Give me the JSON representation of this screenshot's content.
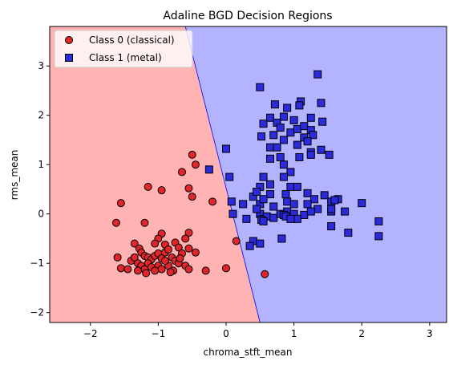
{
  "chart_data": {
    "type": "scatter",
    "title": "Adaline BGD Decision Regions",
    "xlabel": "chroma_stft_mean",
    "ylabel": "rms_mean",
    "xlim": [
      -2.6,
      3.25
    ],
    "ylim": [
      -2.2,
      3.8
    ],
    "x_ticks": [
      -2,
      -1,
      0,
      1,
      2,
      3
    ],
    "y_ticks": [
      -2,
      -1,
      0,
      1,
      2,
      3
    ],
    "grid": false,
    "legend_position": "top-left",
    "regions": {
      "boundary_line": [
        [
          -0.6,
          3.8
        ],
        [
          0.5,
          -2.2
        ]
      ],
      "class_0_color": "#ffb3b3",
      "class_1_color": "#b3b3ff",
      "boundary_color": "#0000ff"
    },
    "series": [
      {
        "name": "Class 0 (classical)",
        "marker": "circle",
        "color": "#e0262b",
        "edge_color": "#000000",
        "points": [
          [
            -0.5,
            1.2
          ],
          [
            -0.45,
            1.0
          ],
          [
            -0.65,
            0.85
          ],
          [
            -0.55,
            0.52
          ],
          [
            -0.5,
            0.35
          ],
          [
            -1.15,
            0.55
          ],
          [
            -0.95,
            0.48
          ],
          [
            -1.55,
            0.22
          ],
          [
            -0.2,
            0.25
          ],
          [
            -1.62,
            -0.18
          ],
          [
            -1.2,
            -0.18
          ],
          [
            -0.95,
            -0.4
          ],
          [
            -0.55,
            -0.38
          ],
          [
            -0.6,
            -0.5
          ],
          [
            -1.0,
            -0.5
          ],
          [
            -1.35,
            -0.6
          ],
          [
            -1.05,
            -0.6
          ],
          [
            -0.75,
            -0.58
          ],
          [
            -0.9,
            -0.62
          ],
          [
            0.15,
            -0.55
          ],
          [
            -1.6,
            -0.88
          ],
          [
            -1.4,
            -0.95
          ],
          [
            -1.28,
            -0.7
          ],
          [
            -1.25,
            -0.78
          ],
          [
            -1.2,
            -0.85
          ],
          [
            -1.15,
            -0.88
          ],
          [
            -1.1,
            -0.92
          ],
          [
            -1.05,
            -0.85
          ],
          [
            -1.0,
            -0.8
          ],
          [
            -0.95,
            -0.9
          ],
          [
            -0.9,
            -0.78
          ],
          [
            -0.85,
            -0.72
          ],
          [
            -0.8,
            -0.88
          ],
          [
            -0.75,
            -0.95
          ],
          [
            -0.7,
            -0.68
          ],
          [
            -0.65,
            -0.8
          ],
          [
            -0.55,
            -0.7
          ],
          [
            -0.45,
            -0.78
          ],
          [
            -1.3,
            -1.0
          ],
          [
            -1.25,
            -1.05
          ],
          [
            -1.2,
            -1.12
          ],
          [
            -1.15,
            -1.0
          ],
          [
            -1.1,
            -1.08
          ],
          [
            -1.0,
            -1.05
          ],
          [
            -0.95,
            -1.12
          ],
          [
            -0.85,
            -1.05
          ],
          [
            -0.78,
            -1.15
          ],
          [
            -0.7,
            -1.0
          ],
          [
            -0.6,
            -1.05
          ],
          [
            -1.55,
            -1.1
          ],
          [
            -1.45,
            -1.12
          ],
          [
            -1.3,
            -1.15
          ],
          [
            -1.18,
            -1.2
          ],
          [
            -1.05,
            -1.15
          ],
          [
            -0.82,
            -1.18
          ],
          [
            -0.55,
            -1.12
          ],
          [
            -0.3,
            -1.15
          ],
          [
            0.0,
            -1.1
          ],
          [
            0.57,
            -1.22
          ],
          [
            -1.35,
            -0.88
          ],
          [
            -0.9,
            -0.95
          ],
          [
            -0.68,
            -0.9
          ]
        ]
      },
      {
        "name": "Class 1 (metal)",
        "marker": "square",
        "color": "#2b2bdc",
        "edge_color": "#000000",
        "points": [
          [
            1.35,
            2.83
          ],
          [
            0.5,
            2.57
          ],
          [
            0.72,
            2.22
          ],
          [
            1.1,
            2.28
          ],
          [
            1.08,
            2.2
          ],
          [
            0.9,
            2.15
          ],
          [
            1.4,
            2.25
          ],
          [
            0.65,
            1.95
          ],
          [
            0.85,
            1.97
          ],
          [
            1.0,
            1.9
          ],
          [
            1.25,
            1.95
          ],
          [
            1.42,
            1.87
          ],
          [
            0.55,
            1.83
          ],
          [
            0.75,
            1.85
          ],
          [
            0.8,
            1.75
          ],
          [
            0.95,
            1.65
          ],
          [
            1.05,
            1.72
          ],
          [
            1.15,
            1.78
          ],
          [
            1.25,
            1.7
          ],
          [
            1.28,
            1.6
          ],
          [
            0.52,
            1.57
          ],
          [
            0.7,
            1.6
          ],
          [
            0.85,
            1.5
          ],
          [
            0.65,
            1.35
          ],
          [
            1.15,
            1.55
          ],
          [
            1.05,
            1.4
          ],
          [
            1.2,
            1.47
          ],
          [
            0.75,
            1.35
          ],
          [
            0.8,
            1.15
          ],
          [
            1.25,
            1.25
          ],
          [
            1.4,
            1.3
          ],
          [
            0.0,
            1.32
          ],
          [
            0.65,
            1.12
          ],
          [
            1.08,
            1.15
          ],
          [
            1.52,
            1.2
          ],
          [
            0.85,
            1.0
          ],
          [
            0.95,
            0.85
          ],
          [
            1.25,
            1.2
          ],
          [
            -0.25,
            0.9
          ],
          [
            0.05,
            0.75
          ],
          [
            0.55,
            0.75
          ],
          [
            0.85,
            0.75
          ],
          [
            0.5,
            0.55
          ],
          [
            0.65,
            0.6
          ],
          [
            0.88,
            0.4
          ],
          [
            0.95,
            0.55
          ],
          [
            1.05,
            0.55
          ],
          [
            1.2,
            0.42
          ],
          [
            0.4,
            0.35
          ],
          [
            0.45,
            0.45
          ],
          [
            0.65,
            0.4
          ],
          [
            1.3,
            0.3
          ],
          [
            0.5,
            0.2
          ],
          [
            0.55,
            0.3
          ],
          [
            0.9,
            0.25
          ],
          [
            1.45,
            0.38
          ],
          [
            1.55,
            0.25
          ],
          [
            0.08,
            0.25
          ],
          [
            0.25,
            0.2
          ],
          [
            0.7,
            0.15
          ],
          [
            1.0,
            0.2
          ],
          [
            1.2,
            0.2
          ],
          [
            1.65,
            0.3
          ],
          [
            2.0,
            0.22
          ],
          [
            0.5,
            0.0
          ],
          [
            0.9,
            0.05
          ],
          [
            1.35,
            0.1
          ],
          [
            1.55,
            0.05
          ],
          [
            0.1,
            0.0
          ],
          [
            0.3,
            -0.1
          ],
          [
            0.55,
            -0.1
          ],
          [
            0.6,
            -0.05
          ],
          [
            0.7,
            -0.08
          ],
          [
            0.8,
            0.0
          ],
          [
            0.85,
            -0.02
          ],
          [
            1.0,
            0.0
          ],
          [
            1.15,
            -0.02
          ],
          [
            1.25,
            0.05
          ],
          [
            1.55,
            0.1
          ],
          [
            1.75,
            0.05
          ],
          [
            0.52,
            -0.12
          ],
          [
            0.88,
            -0.05
          ],
          [
            1.05,
            -0.1
          ],
          [
            0.4,
            -0.55
          ],
          [
            0.5,
            -0.6
          ],
          [
            0.35,
            -0.65
          ],
          [
            0.82,
            -0.5
          ],
          [
            1.55,
            -0.25
          ],
          [
            1.8,
            -0.38
          ],
          [
            2.25,
            -0.15
          ],
          [
            2.25,
            -0.45
          ],
          [
            0.95,
            -0.1
          ],
          [
            0.55,
            -0.15
          ],
          [
            0.45,
            0.1
          ],
          [
            1.6,
            0.28
          ]
        ]
      }
    ]
  }
}
